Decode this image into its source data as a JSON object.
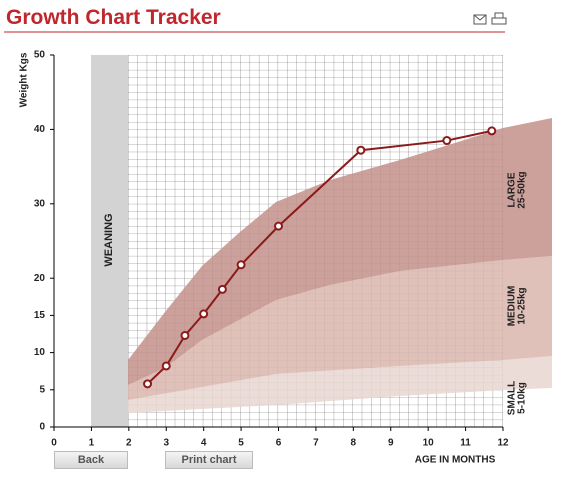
{
  "header": {
    "title": "Growth Chart Tracker"
  },
  "buttons": [
    "Back",
    "Print chart"
  ],
  "chart_data": {
    "type": "line",
    "y_label": "Weight Kgs",
    "x_label": "AGE IN MONTHS",
    "shaded_label": "WEANING",
    "bands": [
      {
        "name": "LARGE",
        "range": "25-50kg"
      },
      {
        "name": "MEDIUM",
        "range": "10-25kg"
      },
      {
        "name": "SMALL",
        "range": "5-10kg"
      }
    ],
    "x": [
      2.5,
      3,
      3.5,
      4,
      4.5,
      5,
      6,
      8.2,
      10.5,
      11.7
    ],
    "values": [
      5.8,
      8.2,
      12.3,
      15.2,
      18.5,
      21.8,
      27,
      37.2,
      38.5,
      39.8
    ],
    "color": "#8b1a1a",
    "xlim": [
      0,
      12
    ],
    "xticks": [
      0,
      1,
      2,
      3,
      4,
      5,
      6,
      7,
      8,
      9,
      10,
      11,
      12
    ],
    "ylim": [
      0,
      50
    ],
    "yticks": [
      0,
      5,
      10,
      15,
      20,
      30,
      40,
      50
    ]
  }
}
